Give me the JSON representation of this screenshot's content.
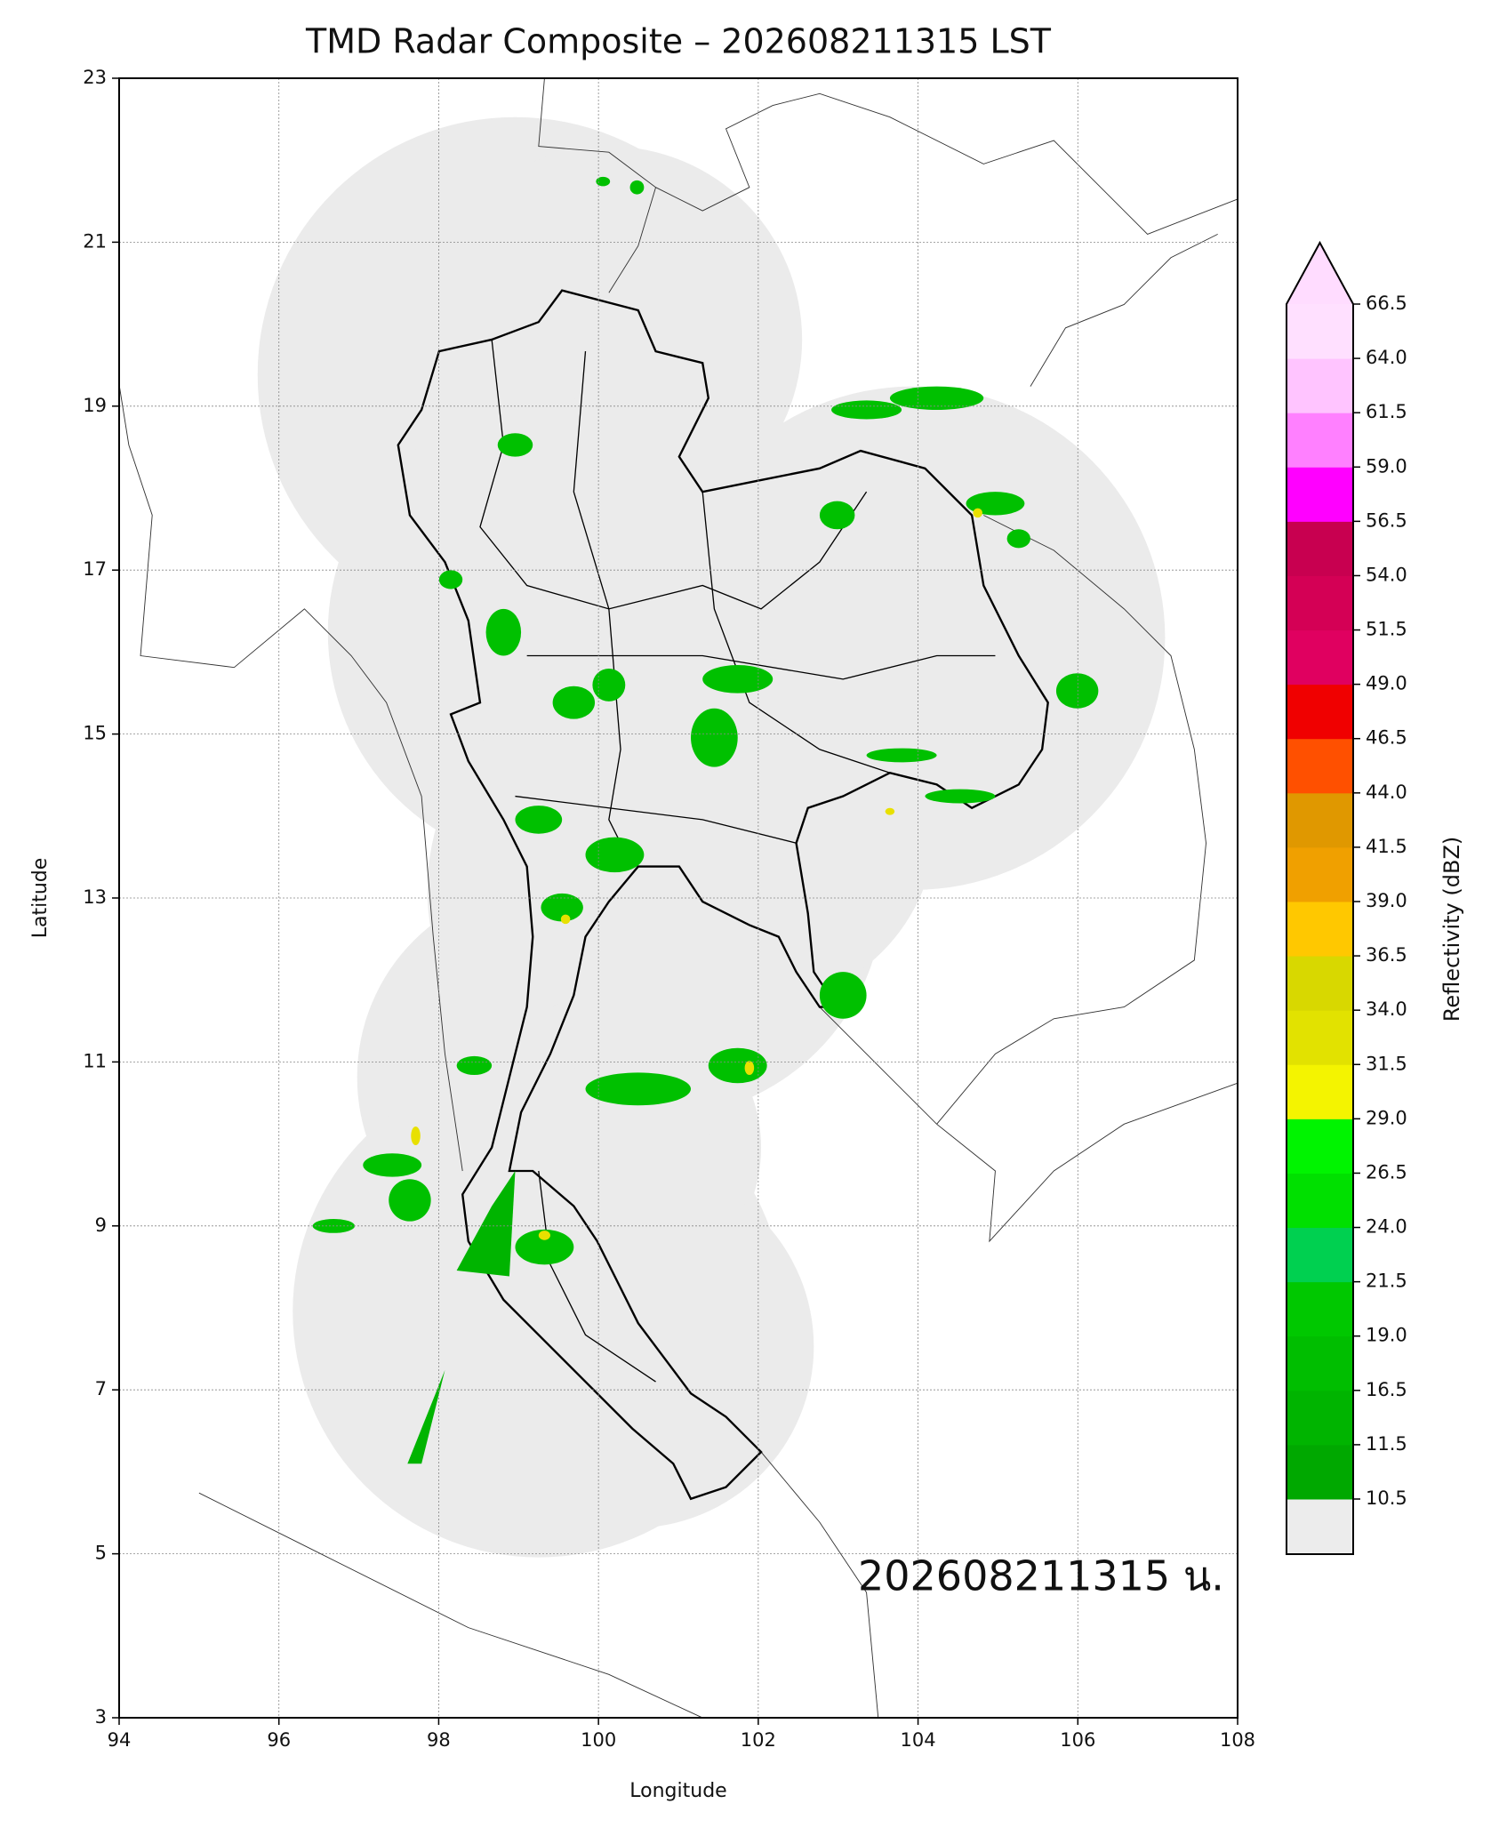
{
  "chart_data": {
    "type": "map",
    "title": "TMD Radar Composite – 202608211315 LST",
    "xlabel": "Longitude",
    "ylabel": "Latitude",
    "annotation": "202608211315 น.",
    "xlim": [
      94,
      108
    ],
    "ylim": [
      3,
      23
    ],
    "xticks": [
      94,
      96,
      98,
      100,
      102,
      104,
      106,
      108
    ],
    "yticks": [
      3,
      5,
      7,
      9,
      11,
      13,
      15,
      17,
      19,
      21,
      23
    ],
    "grid": true,
    "colorbar": {
      "label": "Reflectivity (dBZ)",
      "ticks": [
        10.5,
        11.5,
        16.5,
        {
          "value": 19,
          "label": "19.0"
        },
        21.5,
        {
          "value": 24,
          "label": "24.0"
        },
        26.5,
        {
          "value": 29,
          "label": "29.0"
        },
        31.5,
        {
          "value": 34,
          "label": "34.0"
        },
        36.5,
        {
          "value": 39,
          "label": "39.0"
        },
        41.5,
        {
          "value": 44,
          "label": "44.0"
        },
        46.5,
        {
          "value": 49,
          "label": "49.0"
        },
        51.5,
        {
          "value": 54,
          "label": "54.0"
        },
        56.5,
        {
          "value": 59,
          "label": "59.0"
        },
        61.5,
        {
          "value": 64,
          "label": "64.0"
        },
        66.5
      ],
      "colors": [
        "#00a800",
        "#00b400",
        "#00be00",
        "#00c800",
        "#00d050",
        "#00e000",
        "#00f400",
        "#f4f400",
        "#e2e200",
        "#d8d800",
        "#ffc800",
        "#f0a000",
        "#e09800",
        "#ff5000",
        "#f00000",
        "#e00060",
        "#d40055",
        "#c80050",
        "#ff00ff",
        "#ff80ff",
        "#ffc4ff",
        "#ffe0ff"
      ],
      "under_color": "#ececec",
      "over_color": "#ffdcff"
    }
  }
}
